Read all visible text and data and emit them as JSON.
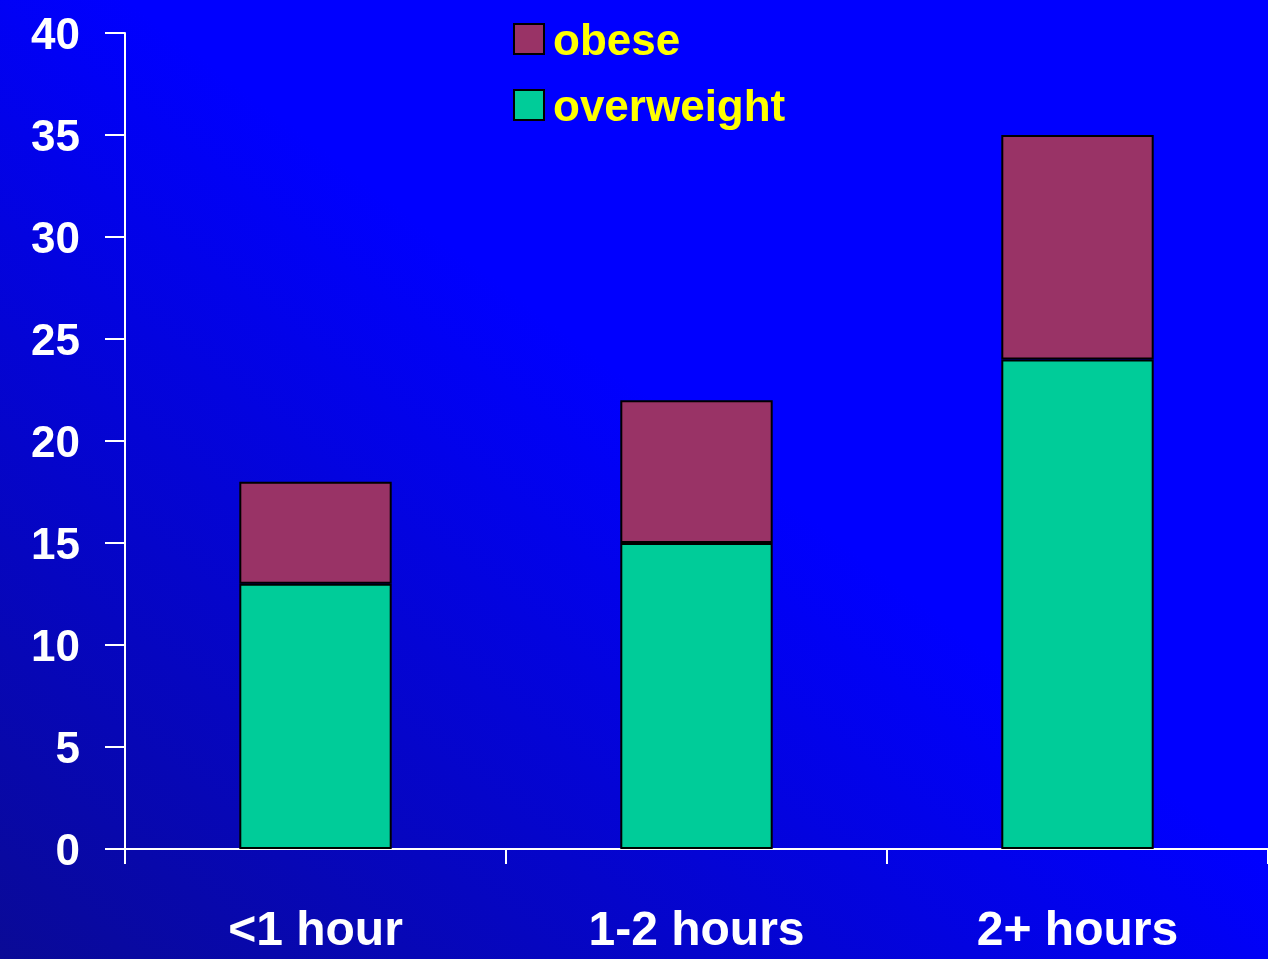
{
  "chart_data": {
    "type": "bar",
    "categories": [
      "<1 hour",
      "1-2 hours",
      "2+ hours"
    ],
    "series": [
      {
        "name": "overweight",
        "color": "#00cc99",
        "values": [
          13,
          15,
          24
        ]
      },
      {
        "name": "obese",
        "color": "#993366",
        "values": [
          5,
          7,
          11
        ]
      }
    ],
    "stacked": true,
    "ylim": [
      0,
      40
    ],
    "yticks": [
      0,
      5,
      10,
      15,
      20,
      25,
      30,
      35,
      40
    ],
    "legend": "top"
  }
}
